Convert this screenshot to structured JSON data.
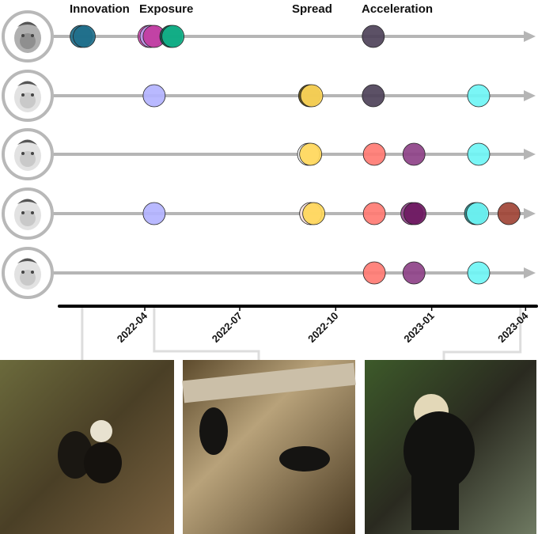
{
  "phases": [
    {
      "label": "Innovation",
      "date": "2022-02-01"
    },
    {
      "label": "Exposure",
      "date": "2022-04-12"
    },
    {
      "label": "Spread",
      "date": "2022-09-10"
    },
    {
      "label": "Acceleration",
      "date": "2022-11-25"
    }
  ],
  "axis": {
    "ticks": [
      "2022-04",
      "2022-07",
      "2022-10",
      "2023-01",
      "2023-04"
    ],
    "range": [
      "2022-01-01",
      "2023-04-20"
    ]
  },
  "individuals": [
    {
      "face": "monkey-face-1",
      "events": [
        {
          "date": "2022-01-30",
          "color": "#1f6f8b"
        },
        {
          "date": "2022-02-02",
          "color": "#1f6f8b"
        },
        {
          "date": "2022-04-05",
          "color": "#d94fb5"
        },
        {
          "date": "2022-04-07",
          "color": "#b89be8"
        },
        {
          "date": "2022-04-10",
          "color": "#c23ba0"
        },
        {
          "date": "2022-04-26",
          "color": "#0a5a48"
        },
        {
          "date": "2022-04-28",
          "color": "#12b38a"
        },
        {
          "date": "2022-11-06",
          "color": "#4e4259"
        }
      ]
    },
    {
      "face": "monkey-face-2",
      "events": [
        {
          "date": "2022-04-10",
          "color": "#b3b3ff"
        },
        {
          "date": "2022-09-06",
          "color": "#5a4a10"
        },
        {
          "date": "2022-09-08",
          "color": "#ffd75a"
        },
        {
          "date": "2022-11-06",
          "color": "#4e4259"
        },
        {
          "date": "2023-02-15",
          "color": "#6ff5f5"
        }
      ]
    },
    {
      "face": "monkey-face-3",
      "events": [
        {
          "date": "2022-09-05",
          "color": "#fff"
        },
        {
          "date": "2022-09-07",
          "color": "#ffd75a"
        },
        {
          "date": "2022-11-07",
          "color": "#ff7b73"
        },
        {
          "date": "2022-12-15",
          "color": "#8e4288"
        },
        {
          "date": "2023-02-15",
          "color": "#6ff5f5"
        }
      ]
    },
    {
      "face": "monkey-face-4",
      "events": [
        {
          "date": "2022-04-10",
          "color": "#b3b3ff"
        },
        {
          "date": "2022-09-07",
          "color": "#f6e0dc"
        },
        {
          "date": "2022-09-10",
          "color": "#ffd75a"
        },
        {
          "date": "2022-11-07",
          "color": "#ff7b73"
        },
        {
          "date": "2022-12-13",
          "color": "#8e4288"
        },
        {
          "date": "2022-12-16",
          "color": "#6e1a62"
        },
        {
          "date": "2023-02-12",
          "color": "#2a8b8b"
        },
        {
          "date": "2023-02-14",
          "color": "#6ff5f5"
        },
        {
          "date": "2023-03-16",
          "color": "#a04436"
        }
      ]
    },
    {
      "face": "monkey-face-5",
      "events": [
        {
          "date": "2022-11-07",
          "color": "#ff7b73"
        },
        {
          "date": "2022-12-15",
          "color": "#8e4288"
        },
        {
          "date": "2023-02-15",
          "color": "#6ff5f5"
        }
      ]
    }
  ],
  "photos": [
    {
      "name": "photo-innovation",
      "linked_date": "2022-01-31"
    },
    {
      "name": "photo-exposure",
      "linked_date": "2022-04-10"
    },
    {
      "name": "photo-acceleration",
      "linked_date": "2023-03-27"
    }
  ]
}
